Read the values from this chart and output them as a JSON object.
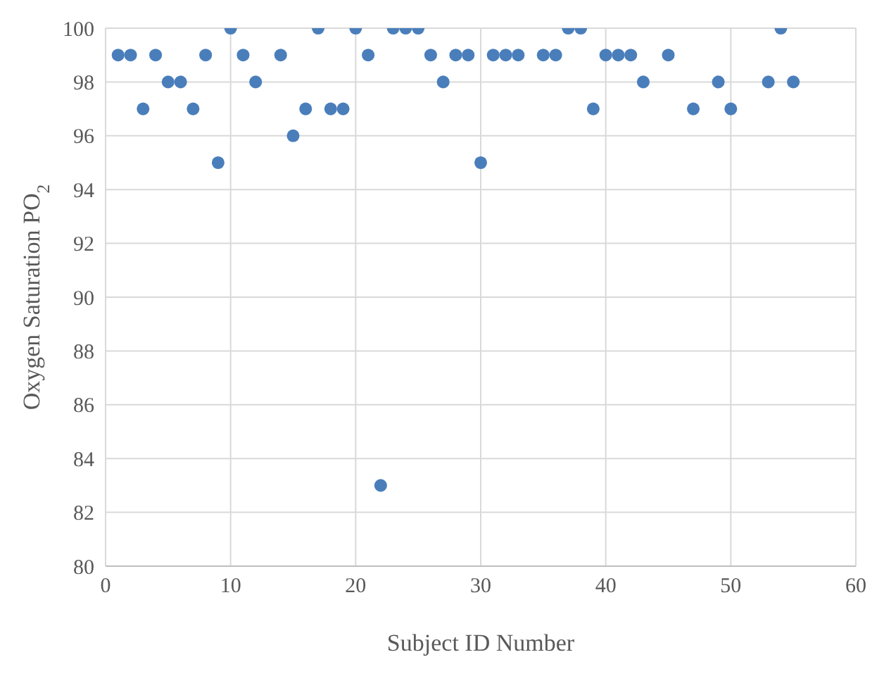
{
  "chart_data": {
    "type": "scatter",
    "xlabel": "Subject ID Number",
    "ylabel": "Oxygen Saturation PO$_{2}$",
    "x": [
      1,
      2,
      3,
      4,
      5,
      6,
      7,
      8,
      9,
      10,
      11,
      12,
      14,
      15,
      16,
      17,
      18,
      19,
      20,
      21,
      22,
      23,
      24,
      25,
      26,
      27,
      28,
      29,
      30,
      31,
      32,
      33,
      35,
      36,
      37,
      38,
      39,
      40,
      41,
      42,
      43,
      45,
      47,
      49,
      50,
      53,
      54,
      55
    ],
    "series": [
      {
        "color": "#4a7ebb",
        "values": [
          99,
          99,
          97,
          99,
          98,
          98,
          97,
          99,
          95,
          100,
          99,
          98,
          99,
          96,
          97,
          100,
          97,
          97,
          100,
          99,
          83,
          100,
          100,
          100,
          99,
          98,
          99,
          99,
          95,
          99,
          99,
          99,
          99,
          99,
          100,
          100,
          97,
          99,
          99,
          99,
          98,
          99,
          97,
          98,
          97,
          98,
          100,
          98
        ]
      }
    ],
    "xlim": [
      0,
      60
    ],
    "xticks": [
      0,
      10,
      20,
      30,
      40,
      50,
      60
    ],
    "ylim": [
      80,
      100
    ],
    "yticks": [
      80,
      82,
      84,
      86,
      88,
      90,
      92,
      94,
      96,
      98,
      100
    ],
    "grid": true,
    "marker": "circle",
    "legend": false
  }
}
